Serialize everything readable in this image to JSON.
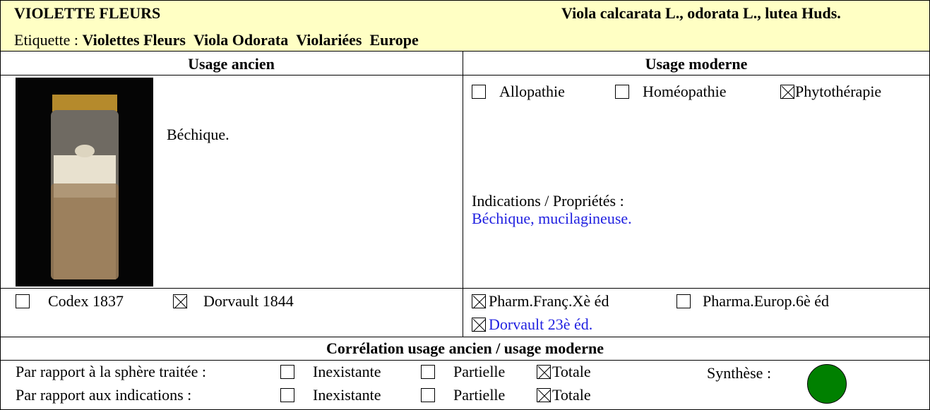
{
  "header": {
    "title": "VIOLETTE FLEURS",
    "species": "Viola calcarata L., odorata L., lutea Huds.",
    "label_prefix": "Etiquette :",
    "labels": [
      "Violettes Fleurs",
      "Viola Odorata",
      "Violariées",
      "Europe"
    ]
  },
  "ancient": {
    "heading": "Usage ancien",
    "description": "Béchique.",
    "sources": [
      {
        "label": "Codex 1837",
        "checked": false
      },
      {
        "label": "Dorvault 1844",
        "checked": true
      }
    ]
  },
  "modern": {
    "heading": "Usage moderne",
    "practices": [
      {
        "label": "Allopathie",
        "checked": false
      },
      {
        "label": "Homéopathie",
        "checked": false
      },
      {
        "label": "Phytothérapie",
        "checked": true
      }
    ],
    "indications_label": "Indications / Propriétés :",
    "indications": "Béchique, mucilagineuse.",
    "sources": [
      {
        "label": "Pharm.Franç.Xè éd",
        "checked": true
      },
      {
        "label": "Pharma.Europ.6è éd",
        "checked": false
      },
      {
        "label": "Dorvault 23è éd.",
        "checked": true
      }
    ]
  },
  "correlation": {
    "heading": "Corrélation usage ancien / usage moderne",
    "rows": [
      {
        "label": "Par rapport à la sphère traitée :",
        "options": [
          {
            "label": "Inexistante",
            "checked": false
          },
          {
            "label": "Partielle",
            "checked": false
          },
          {
            "label": "Totale",
            "checked": true
          }
        ]
      },
      {
        "label": "Par rapport aux indications :",
        "options": [
          {
            "label": "Inexistante",
            "checked": false
          },
          {
            "label": "Partielle",
            "checked": false
          },
          {
            "label": "Totale",
            "checked": true
          }
        ]
      }
    ],
    "synthesis_label": "Synthèse :",
    "synthesis_color": "#008000"
  }
}
